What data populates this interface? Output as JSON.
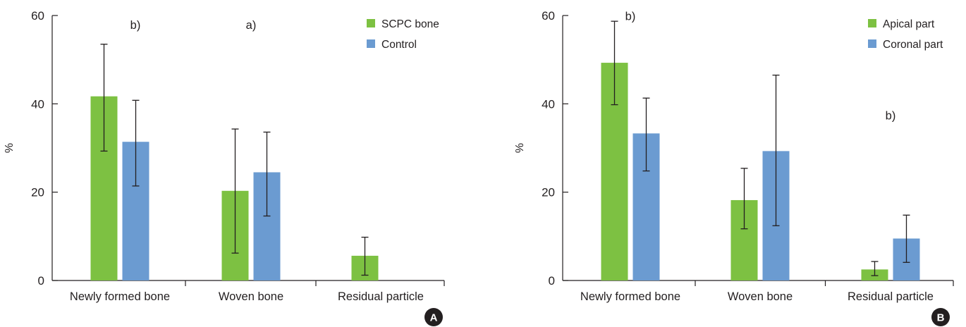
{
  "colors": {
    "green": "#7dc142",
    "blue": "#6b9bd1",
    "axis": "#231f20",
    "badge": "#231f20"
  },
  "chart_data": [
    {
      "type": "bar",
      "panel_label": "A",
      "ylabel": "%",
      "ylim": [
        0,
        60
      ],
      "yticks": [
        "0",
        "20",
        "40",
        "60"
      ],
      "categories": [
        "Newly formed bone",
        "Woven bone",
        "Residual particle"
      ],
      "series": [
        {
          "name": "SCPC bone",
          "color": "green",
          "values": [
            41.7,
            20.3,
            5.6
          ],
          "err_low": [
            29.3,
            6.2,
            1.2
          ],
          "err_high": [
            53.5,
            34.3,
            9.8
          ]
        },
        {
          "name": "Control",
          "color": "blue",
          "values": [
            31.4,
            24.5,
            null
          ],
          "err_low": [
            21.4,
            14.6,
            null
          ],
          "err_high": [
            40.8,
            33.6,
            null
          ]
        }
      ],
      "annotations": [
        {
          "text": "b)",
          "category": 0,
          "y": 57
        },
        {
          "text": "a)",
          "category": 1,
          "y": 57
        }
      ],
      "legend": "top-right"
    },
    {
      "type": "bar",
      "panel_label": "B",
      "ylabel": "%",
      "ylim": [
        0,
        60
      ],
      "yticks": [
        "0",
        "20",
        "40",
        "60"
      ],
      "categories": [
        "Newly formed bone",
        "Woven bone",
        "Residual particle"
      ],
      "series": [
        {
          "name": "Apical part",
          "color": "green",
          "values": [
            49.3,
            18.2,
            2.5
          ],
          "err_low": [
            39.8,
            11.7,
            1.1
          ],
          "err_high": [
            58.7,
            25.4,
            4.3
          ]
        },
        {
          "name": "Coronal part",
          "color": "blue",
          "values": [
            33.3,
            29.3,
            9.5
          ],
          "err_low": [
            24.8,
            12.4,
            4.1
          ],
          "err_high": [
            41.3,
            46.5,
            14.8
          ]
        }
      ],
      "annotations": [
        {
          "text": "b)",
          "category": 0,
          "y": 59
        },
        {
          "text": "b)",
          "category": 2,
          "y": 36.5
        }
      ],
      "legend": "top-right"
    }
  ]
}
